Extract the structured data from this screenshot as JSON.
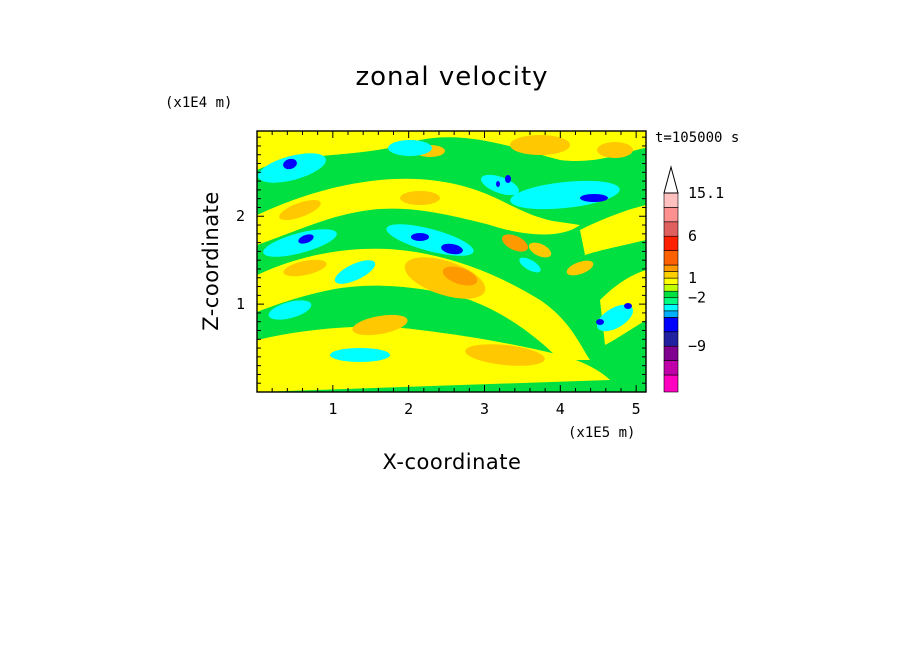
{
  "chart_data": {
    "type": "heatmap",
    "title": "zonal velocity",
    "xlabel": "X-coordinate",
    "ylabel": "Z-coordinate",
    "x_scale_label": "(x1E5 m)",
    "y_scale_label": "(x1E4 m)",
    "time_label": "t=105000 s",
    "x_ticks": [
      "1",
      "2",
      "3",
      "4",
      "5"
    ],
    "y_ticks": [
      "1",
      "2"
    ],
    "xlim": [
      0,
      5.13
    ],
    "ylim": [
      0,
      2.97
    ],
    "colorbar": {
      "labels": [
        "15.1",
        "6",
        "1",
        "-2",
        "-9"
      ],
      "levels": [
        {
          "color": "#ff00c0"
        },
        {
          "color": "#c000a8"
        },
        {
          "color": "#800090"
        },
        {
          "color": "#2020a0"
        },
        {
          "color": "#0000ff"
        },
        {
          "color": "#00b0ff"
        },
        {
          "color": "#00ffff"
        },
        {
          "color": "#00ff80"
        },
        {
          "color": "#00e040"
        },
        {
          "color": "#c0ff00"
        },
        {
          "color": "#ffff00"
        },
        {
          "color": "#ffd000"
        },
        {
          "color": "#ff9900"
        },
        {
          "color": "#ff6000"
        },
        {
          "color": "#ff2000"
        },
        {
          "color": "#e06060"
        },
        {
          "color": "#ff9090"
        },
        {
          "color": "#ffc0c0"
        }
      ]
    },
    "field_colors": {
      "background": "#00e040",
      "positive_weak": "#ffff00",
      "positive_mid": "#ffc800",
      "positive_strong": "#ff9900",
      "negative_weak": "#00ffff",
      "negative_strong": "#0000ff",
      "negative_mid": "#00b0ff"
    }
  }
}
